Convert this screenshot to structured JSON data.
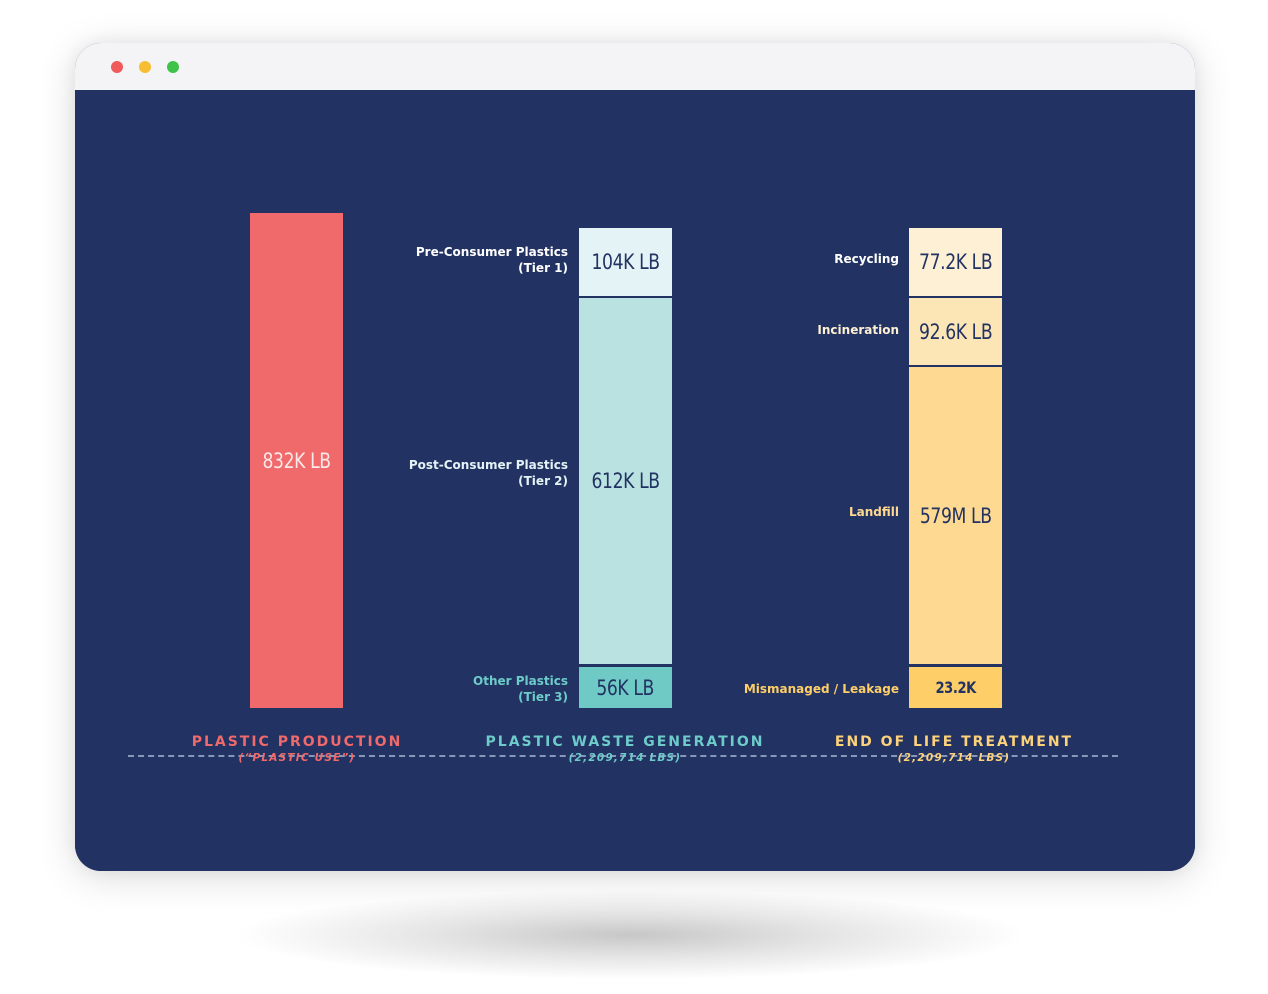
{
  "window": {
    "controls": [
      "close",
      "minimize",
      "maximize"
    ]
  },
  "colors": {
    "background": "#223262",
    "production": "#f0696b",
    "waste_text": "#6dcbc9",
    "treatment_text": "#fdd27a",
    "tier1": "#e3f3f6",
    "tier2": "#b9e2e1",
    "tier3": "#6fcac6",
    "recycling": "#fef0d4",
    "incineration": "#fde6b6",
    "landfill": "#fed991",
    "leakage": "#fece69"
  },
  "chart_data": {
    "type": "bar",
    "subtype": "stacked",
    "unit": "LB",
    "columns": [
      {
        "title": "PLASTIC PRODUCTION",
        "subtitle": "(“PLASTIC USE”)",
        "segments": [
          {
            "name": "Plastic Production",
            "value": 832000,
            "label": "832K LB"
          }
        ]
      },
      {
        "title": "PLASTIC WASTE GENERATION",
        "subtitle": "(2,209,714 LBS)",
        "segments": [
          {
            "name_line1": "Pre-Consumer Plastics",
            "name_line2": "(Tier 1)",
            "value": 104000,
            "label": "104K LB"
          },
          {
            "name_line1": "Post-Consumer Plastics",
            "name_line2": "(Tier 2)",
            "value": 612000,
            "label": "612K LB"
          },
          {
            "name_line1": "Other Plastics",
            "name_line2": "(Tier 3)",
            "value": 56000,
            "label": "56K LB"
          }
        ]
      },
      {
        "title": "END OF LIFE TREATMENT",
        "subtitle": "(2,209,714 LBS)",
        "segments": [
          {
            "name_line1": "Recycling",
            "name_line2": "",
            "value": 77200,
            "label": "77.2K LB"
          },
          {
            "name_line1": "Incineration",
            "name_line2": "",
            "value": 92600,
            "label": "92.6K LB"
          },
          {
            "name_line1": "Landfill",
            "name_line2": "",
            "value": 579000000,
            "label": "579M LB"
          },
          {
            "name_line1": "Mismanaged / Leakage",
            "name_line2": "",
            "value": 23200,
            "label": "23.2K"
          }
        ]
      }
    ]
  }
}
